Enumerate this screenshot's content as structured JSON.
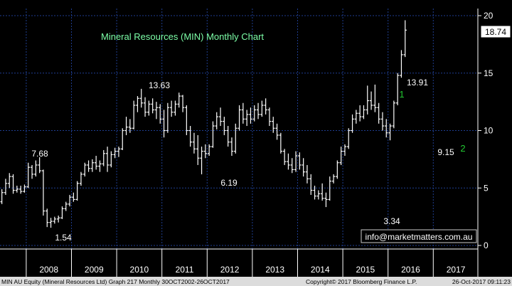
{
  "chart_data": {
    "type": "ohlc",
    "title": "Mineral Resources (MIN) Monthly Chart",
    "ylim": [
      0,
      20
    ],
    "y_ticks": [
      0,
      5,
      10,
      15,
      20
    ],
    "x_years": [
      "2008",
      "2009",
      "2010",
      "2011",
      "2012",
      "2013",
      "2014",
      "2015",
      "2016",
      "2017"
    ],
    "last_price": "18.74",
    "annotations": [
      {
        "text": "7.68",
        "year": 2008.2,
        "value": 7.68
      },
      {
        "text": "1.54",
        "year": 2008.6,
        "value": 1.54
      },
      {
        "text": "13.63",
        "year": 2011.0,
        "value": 13.63
      },
      {
        "text": "6.19",
        "year": 2012.7,
        "value": 6.19
      },
      {
        "text": "3.34",
        "year": 2015.95,
        "value": 3.34
      },
      {
        "text": "13.91",
        "year": 2016.5,
        "value": 13.91
      },
      {
        "text": "9.15",
        "year": 2017.1,
        "value": 9.15
      }
    ],
    "wave_labels": [
      {
        "text": "1",
        "near": "13.91"
      },
      {
        "text": "2",
        "near": "9.15"
      }
    ],
    "series": [
      {
        "values": [
          {
            "o": 3.8,
            "h": 4.9,
            "l": 3.6,
            "c": 4.6
          },
          {
            "o": 4.6,
            "h": 5.8,
            "l": 4.4,
            "c": 5.4
          },
          {
            "o": 5.4,
            "h": 6.3,
            "l": 5.0,
            "c": 6.0
          },
          {
            "o": 6.0,
            "h": 6.2,
            "l": 4.5,
            "c": 4.8
          },
          {
            "o": 4.8,
            "h": 5.2,
            "l": 4.6,
            "c": 4.9
          },
          {
            "o": 4.9,
            "h": 5.2,
            "l": 4.5,
            "c": 4.7
          },
          {
            "o": 4.7,
            "h": 5.3,
            "l": 4.6,
            "c": 5.1
          },
          {
            "o": 5.1,
            "h": 7.2,
            "l": 5.0,
            "c": 6.8
          },
          {
            "o": 6.8,
            "h": 7.0,
            "l": 5.8,
            "c": 6.2
          },
          {
            "o": 6.2,
            "h": 7.4,
            "l": 6.0,
            "c": 7.0
          },
          {
            "o": 7.0,
            "h": 7.68,
            "l": 6.3,
            "c": 6.5
          },
          {
            "o": 6.5,
            "h": 6.6,
            "l": 2.6,
            "c": 3.0
          },
          {
            "o": 3.0,
            "h": 3.2,
            "l": 1.6,
            "c": 2.0
          },
          {
            "o": 2.0,
            "h": 2.4,
            "l": 1.54,
            "c": 2.1
          },
          {
            "o": 2.1,
            "h": 2.5,
            "l": 1.9,
            "c": 2.3
          },
          {
            "o": 2.3,
            "h": 2.6,
            "l": 2.0,
            "c": 2.4
          },
          {
            "o": 2.4,
            "h": 3.4,
            "l": 2.3,
            "c": 3.2
          },
          {
            "o": 3.2,
            "h": 3.8,
            "l": 3.0,
            "c": 3.6
          },
          {
            "o": 3.6,
            "h": 4.4,
            "l": 3.4,
            "c": 4.2
          },
          {
            "o": 4.2,
            "h": 4.6,
            "l": 3.8,
            "c": 4.0
          },
          {
            "o": 4.0,
            "h": 5.6,
            "l": 3.9,
            "c": 5.4
          },
          {
            "o": 5.4,
            "h": 6.4,
            "l": 5.2,
            "c": 6.2
          },
          {
            "o": 6.2,
            "h": 7.2,
            "l": 6.0,
            "c": 7.0
          },
          {
            "o": 7.0,
            "h": 7.4,
            "l": 6.4,
            "c": 6.7
          },
          {
            "o": 6.7,
            "h": 7.5,
            "l": 6.4,
            "c": 7.2
          },
          {
            "o": 7.2,
            "h": 7.8,
            "l": 6.6,
            "c": 6.9
          },
          {
            "o": 6.9,
            "h": 7.4,
            "l": 6.4,
            "c": 7.1
          },
          {
            "o": 7.1,
            "h": 8.3,
            "l": 6.9,
            "c": 8.0
          },
          {
            "o": 8.0,
            "h": 8.6,
            "l": 6.4,
            "c": 7.0
          },
          {
            "o": 7.0,
            "h": 8.2,
            "l": 6.8,
            "c": 7.9
          },
          {
            "o": 7.9,
            "h": 8.5,
            "l": 7.6,
            "c": 8.2
          },
          {
            "o": 8.2,
            "h": 8.6,
            "l": 7.7,
            "c": 8.4
          },
          {
            "o": 8.4,
            "h": 10.2,
            "l": 8.3,
            "c": 10.0
          },
          {
            "o": 10.0,
            "h": 11.2,
            "l": 9.6,
            "c": 10.3
          },
          {
            "o": 10.3,
            "h": 11.0,
            "l": 9.8,
            "c": 10.2
          },
          {
            "o": 10.2,
            "h": 12.6,
            "l": 10.1,
            "c": 12.2
          },
          {
            "o": 12.2,
            "h": 13.0,
            "l": 11.6,
            "c": 12.8
          },
          {
            "o": 12.8,
            "h": 13.63,
            "l": 12.0,
            "c": 12.4
          },
          {
            "o": 12.4,
            "h": 12.9,
            "l": 11.2,
            "c": 11.6
          },
          {
            "o": 11.6,
            "h": 12.6,
            "l": 11.3,
            "c": 12.3
          },
          {
            "o": 12.3,
            "h": 12.8,
            "l": 11.5,
            "c": 11.8
          },
          {
            "o": 11.8,
            "h": 12.5,
            "l": 11.0,
            "c": 12.0
          },
          {
            "o": 12.0,
            "h": 12.3,
            "l": 10.6,
            "c": 11.0
          },
          {
            "o": 11.0,
            "h": 11.8,
            "l": 9.4,
            "c": 10.0
          },
          {
            "o": 10.0,
            "h": 12.4,
            "l": 9.8,
            "c": 12.0
          },
          {
            "o": 12.0,
            "h": 12.6,
            "l": 11.2,
            "c": 11.6
          },
          {
            "o": 11.6,
            "h": 12.6,
            "l": 11.3,
            "c": 12.3
          },
          {
            "o": 12.3,
            "h": 13.3,
            "l": 12.0,
            "c": 13.0
          },
          {
            "o": 13.0,
            "h": 13.1,
            "l": 11.6,
            "c": 12.0
          },
          {
            "o": 12.0,
            "h": 12.2,
            "l": 9.6,
            "c": 10.0
          },
          {
            "o": 10.0,
            "h": 10.4,
            "l": 8.6,
            "c": 9.0
          },
          {
            "o": 9.0,
            "h": 9.8,
            "l": 8.0,
            "c": 8.4
          },
          {
            "o": 8.4,
            "h": 9.6,
            "l": 7.0,
            "c": 7.6
          },
          {
            "o": 7.6,
            "h": 8.6,
            "l": 6.19,
            "c": 8.2
          },
          {
            "o": 8.2,
            "h": 8.8,
            "l": 7.6,
            "c": 8.0
          },
          {
            "o": 8.0,
            "h": 8.8,
            "l": 7.8,
            "c": 8.6
          },
          {
            "o": 8.6,
            "h": 10.8,
            "l": 8.5,
            "c": 10.4
          },
          {
            "o": 10.4,
            "h": 11.6,
            "l": 10.1,
            "c": 11.2
          },
          {
            "o": 11.2,
            "h": 12.0,
            "l": 10.4,
            "c": 10.8
          },
          {
            "o": 10.8,
            "h": 11.2,
            "l": 9.6,
            "c": 10.0
          },
          {
            "o": 10.0,
            "h": 10.4,
            "l": 8.6,
            "c": 9.0
          },
          {
            "o": 9.0,
            "h": 9.4,
            "l": 7.8,
            "c": 8.2
          },
          {
            "o": 8.2,
            "h": 10.6,
            "l": 8.0,
            "c": 10.2
          },
          {
            "o": 10.2,
            "h": 12.2,
            "l": 10.0,
            "c": 11.8
          },
          {
            "o": 11.8,
            "h": 12.4,
            "l": 10.6,
            "c": 11.0
          },
          {
            "o": 11.0,
            "h": 11.8,
            "l": 10.4,
            "c": 11.4
          },
          {
            "o": 11.4,
            "h": 12.0,
            "l": 10.6,
            "c": 11.0
          },
          {
            "o": 11.0,
            "h": 12.2,
            "l": 10.8,
            "c": 11.8
          },
          {
            "o": 11.8,
            "h": 12.4,
            "l": 11.0,
            "c": 11.4
          },
          {
            "o": 11.4,
            "h": 12.6,
            "l": 11.2,
            "c": 12.2
          },
          {
            "o": 12.2,
            "h": 12.8,
            "l": 11.4,
            "c": 11.8
          },
          {
            "o": 11.8,
            "h": 12.0,
            "l": 10.4,
            "c": 10.8
          },
          {
            "o": 10.8,
            "h": 11.2,
            "l": 9.8,
            "c": 10.2
          },
          {
            "o": 10.2,
            "h": 10.6,
            "l": 9.2,
            "c": 9.6
          },
          {
            "o": 9.6,
            "h": 9.8,
            "l": 8.0,
            "c": 8.2
          },
          {
            "o": 8.2,
            "h": 8.4,
            "l": 7.0,
            "c": 7.3
          },
          {
            "o": 7.3,
            "h": 8.0,
            "l": 6.6,
            "c": 7.0
          },
          {
            "o": 7.0,
            "h": 7.6,
            "l": 6.3,
            "c": 6.6
          },
          {
            "o": 6.6,
            "h": 8.2,
            "l": 6.4,
            "c": 7.8
          },
          {
            "o": 7.8,
            "h": 8.1,
            "l": 6.6,
            "c": 7.0
          },
          {
            "o": 7.0,
            "h": 7.6,
            "l": 6.0,
            "c": 6.4
          },
          {
            "o": 6.4,
            "h": 7.0,
            "l": 5.4,
            "c": 5.8
          },
          {
            "o": 5.8,
            "h": 6.2,
            "l": 4.4,
            "c": 4.8
          },
          {
            "o": 4.8,
            "h": 5.2,
            "l": 4.0,
            "c": 4.3
          },
          {
            "o": 4.3,
            "h": 4.8,
            "l": 4.0,
            "c": 4.5
          },
          {
            "o": 4.5,
            "h": 5.4,
            "l": 3.9,
            "c": 4.1
          },
          {
            "o": 4.1,
            "h": 4.6,
            "l": 3.34,
            "c": 4.0
          },
          {
            "o": 4.0,
            "h": 6.0,
            "l": 3.9,
            "c": 5.6
          },
          {
            "o": 5.6,
            "h": 6.2,
            "l": 5.4,
            "c": 6.0
          },
          {
            "o": 6.0,
            "h": 7.4,
            "l": 5.8,
            "c": 7.2
          },
          {
            "o": 7.2,
            "h": 8.6,
            "l": 7.0,
            "c": 8.2
          },
          {
            "o": 8.2,
            "h": 8.8,
            "l": 7.8,
            "c": 8.6
          },
          {
            "o": 8.6,
            "h": 10.2,
            "l": 8.4,
            "c": 10.0
          },
          {
            "o": 10.0,
            "h": 11.4,
            "l": 9.8,
            "c": 11.0
          },
          {
            "o": 11.0,
            "h": 11.8,
            "l": 10.6,
            "c": 11.5
          },
          {
            "o": 11.5,
            "h": 12.2,
            "l": 10.8,
            "c": 11.2
          },
          {
            "o": 11.2,
            "h": 12.2,
            "l": 11.0,
            "c": 11.8
          },
          {
            "o": 11.8,
            "h": 13.91,
            "l": 11.4,
            "c": 12.6
          },
          {
            "o": 12.6,
            "h": 13.4,
            "l": 11.8,
            "c": 12.2
          },
          {
            "o": 12.2,
            "h": 14.0,
            "l": 11.6,
            "c": 12.0
          },
          {
            "o": 12.0,
            "h": 12.4,
            "l": 10.6,
            "c": 11.0
          },
          {
            "o": 11.0,
            "h": 11.6,
            "l": 10.0,
            "c": 10.4
          },
          {
            "o": 10.4,
            "h": 11.0,
            "l": 9.4,
            "c": 9.8
          },
          {
            "o": 9.8,
            "h": 10.6,
            "l": 9.15,
            "c": 10.4
          },
          {
            "o": 10.4,
            "h": 12.6,
            "l": 10.2,
            "c": 12.4
          },
          {
            "o": 12.4,
            "h": 15.0,
            "l": 12.2,
            "c": 14.8
          },
          {
            "o": 14.8,
            "h": 17.0,
            "l": 14.6,
            "c": 16.6
          },
          {
            "o": 16.6,
            "h": 19.6,
            "l": 16.4,
            "c": 18.74
          }
        ]
      }
    ],
    "contact": "info@marketmatters.com.au",
    "footer_left": "MIN AU Equity (Mineral Resources Ltd) Graph 217  Monthly 30OCT2002-26OCT2017",
    "footer_mid": "Copyright© 2017 Bloomberg Finance L.P.",
    "footer_right": "26-Oct-2017 09:11:23",
    "colors": {
      "background": "#000000",
      "grid": "#1e3d8f",
      "bars": "#ffffff",
      "title": "#7dffa8",
      "wave_labels": "#22c832",
      "annotations": "#ffffff"
    }
  }
}
